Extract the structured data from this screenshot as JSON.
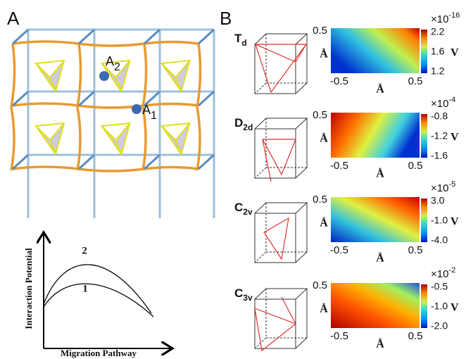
{
  "panel_a": {
    "label": "A",
    "sites": [
      {
        "base": "A",
        "sub": "2"
      },
      {
        "base": "A",
        "sub": "1"
      }
    ],
    "plot": {
      "y_label": "Interaction Potential",
      "x_label": "Migration Pathway",
      "curves": [
        "2",
        "1"
      ]
    }
  },
  "panel_b": {
    "label": "B",
    "rows": [
      {
        "symbol": {
          "base": "T",
          "sub": "d"
        },
        "axis_top": "0.5",
        "axis_left": "-0.5",
        "axis_right": "0.5",
        "unit_y": "Å",
        "unit_x": "Å",
        "scale": {
          "base": "×10",
          "exp": "-16"
        },
        "unit": "V",
        "ticks": [
          "2.2",
          "1.6",
          "1.2"
        ]
      },
      {
        "symbol": {
          "base": "D",
          "sub": "2d"
        },
        "axis_top": "0.5",
        "axis_left": "-0.5",
        "axis_right": "0.5",
        "unit_y": "Å",
        "unit_x": "Å",
        "scale": {
          "base": "×10",
          "exp": "-4"
        },
        "unit": "V",
        "ticks": [
          "-0.8",
          "-1.2",
          "-1.6"
        ]
      },
      {
        "symbol": {
          "base": "C",
          "sub": "2v"
        },
        "axis_top": "0.5",
        "axis_left": "-0.5",
        "axis_right": "0.5",
        "unit_y": "Å",
        "unit_x": "Å",
        "scale": {
          "base": "×10",
          "exp": "-5"
        },
        "unit": "V",
        "ticks": [
          "3.0",
          "-1.0",
          "-4.0"
        ]
      },
      {
        "symbol": {
          "base": "C",
          "sub": "3v"
        },
        "axis_top": "0.5",
        "axis_left": "-0.5",
        "axis_right": "0.5",
        "unit_y": "Å",
        "unit_x": "Å",
        "scale": {
          "base": "×10",
          "exp": "-2"
        },
        "unit": "V",
        "ticks": [
          "-0.5",
          "-1.0",
          "-2.0"
        ]
      }
    ]
  }
}
